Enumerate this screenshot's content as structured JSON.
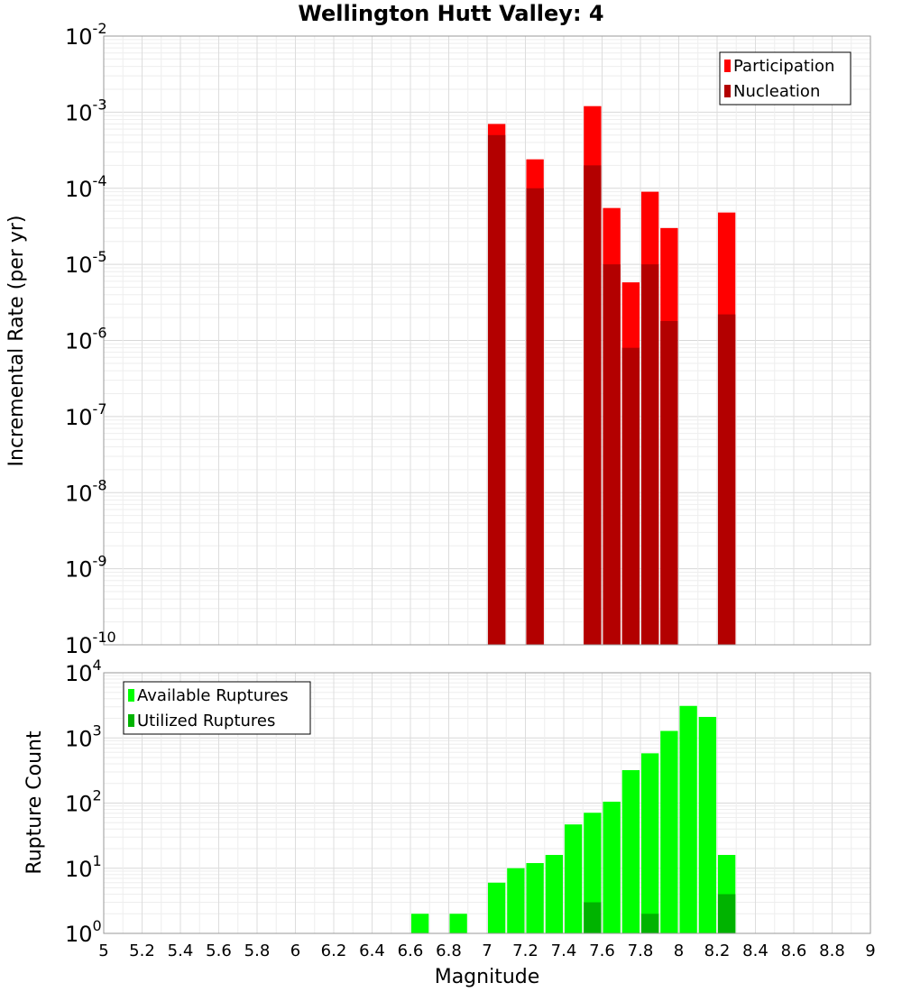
{
  "chart_data": [
    {
      "type": "bar",
      "title": "Wellington Hutt Valley: 4",
      "xlabel": "",
      "ylabel": "Incremental Rate (per yr)",
      "yscale": "log",
      "xlim": [
        5,
        9
      ],
      "ylim_exponents": [
        -10,
        -2
      ],
      "grid": true,
      "legend_position": "top-right",
      "series": [
        {
          "name": "Participation",
          "color": "#ff0000",
          "points": [
            {
              "x": 7.05,
              "y": 0.0007
            },
            {
              "x": 7.25,
              "y": 0.00024
            },
            {
              "x": 7.55,
              "y": 0.0012
            },
            {
              "x": 7.65,
              "y": 5.5e-05
            },
            {
              "x": 7.75,
              "y": 5.8e-06
            },
            {
              "x": 7.85,
              "y": 9e-05
            },
            {
              "x": 7.95,
              "y": 3e-05
            },
            {
              "x": 8.25,
              "y": 4.8e-05
            }
          ]
        },
        {
          "name": "Nucleation",
          "color": "#b30000",
          "points": [
            {
              "x": 7.05,
              "y": 0.0005
            },
            {
              "x": 7.25,
              "y": 0.0001
            },
            {
              "x": 7.55,
              "y": 0.0002
            },
            {
              "x": 7.65,
              "y": 1e-05
            },
            {
              "x": 7.75,
              "y": 8e-07
            },
            {
              "x": 7.85,
              "y": 1e-05
            },
            {
              "x": 7.95,
              "y": 1.8e-06
            },
            {
              "x": 8.25,
              "y": 2.2e-06
            }
          ]
        }
      ]
    },
    {
      "type": "bar",
      "title": "",
      "xlabel": "Magnitude",
      "ylabel": "Rupture Count",
      "yscale": "log",
      "xlim": [
        5,
        9
      ],
      "ylim_exponents": [
        0,
        4
      ],
      "grid": true,
      "legend_position": "top-left",
      "x_ticks": [
        "5",
        "5.2",
        "5.4",
        "5.6",
        "5.8",
        "6",
        "6.2",
        "6.4",
        "6.6",
        "6.8",
        "7",
        "7.2",
        "7.4",
        "7.6",
        "7.8",
        "8",
        "8.2",
        "8.4",
        "8.6",
        "8.8",
        "9"
      ],
      "series": [
        {
          "name": "Available Ruptures",
          "color": "#00ff00",
          "points": [
            {
              "x": 6.65,
              "y": 2
            },
            {
              "x": 6.85,
              "y": 2
            },
            {
              "x": 6.95,
              "y": 1
            },
            {
              "x": 7.05,
              "y": 6
            },
            {
              "x": 7.15,
              "y": 10
            },
            {
              "x": 7.25,
              "y": 12
            },
            {
              "x": 7.35,
              "y": 16
            },
            {
              "x": 7.45,
              "y": 47
            },
            {
              "x": 7.55,
              "y": 71
            },
            {
              "x": 7.65,
              "y": 105
            },
            {
              "x": 7.75,
              "y": 320
            },
            {
              "x": 7.85,
              "y": 580
            },
            {
              "x": 7.95,
              "y": 1280
            },
            {
              "x": 8.05,
              "y": 3100
            },
            {
              "x": 8.15,
              "y": 2100
            },
            {
              "x": 8.25,
              "y": 16
            }
          ]
        },
        {
          "name": "Utilized Ruptures",
          "color": "#00b300",
          "points": [
            {
              "x": 7.05,
              "y": 1
            },
            {
              "x": 7.25,
              "y": 1
            },
            {
              "x": 7.55,
              "y": 3
            },
            {
              "x": 7.65,
              "y": 1
            },
            {
              "x": 7.75,
              "y": 1
            },
            {
              "x": 7.85,
              "y": 2
            },
            {
              "x": 7.95,
              "y": 1
            },
            {
              "x": 8.25,
              "y": 4
            }
          ]
        }
      ]
    }
  ]
}
